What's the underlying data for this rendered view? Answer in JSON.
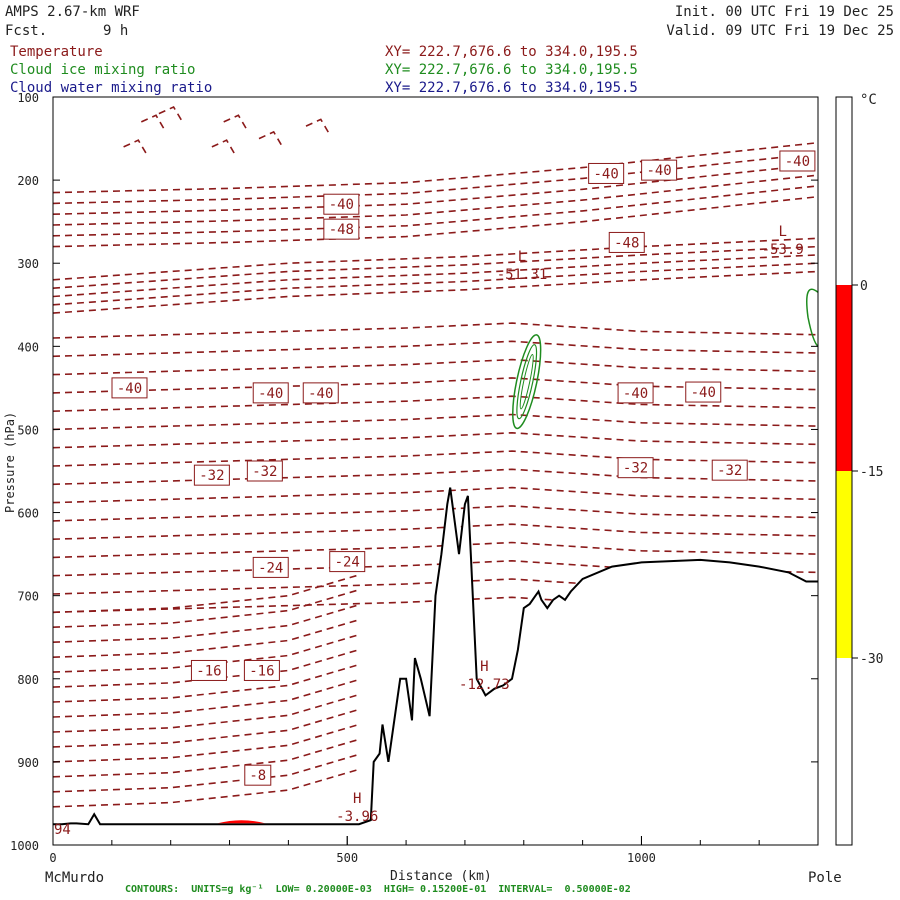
{
  "header": {
    "model": "AMPS 2.67-km WRF",
    "fcst_label": "Fcst.",
    "fcst_value": "9 h",
    "init": "Init. 00 UTC Fri 19 Dec 25",
    "valid": "Valid. 09 UTC Fri 19 Dec 25"
  },
  "fields": [
    {
      "name": "Temperature",
      "xy": "XY= 222.7,676.6 to 334.0,195.5",
      "color": "#8b1a1a"
    },
    {
      "name": "Cloud ice mixing ratio",
      "xy": "XY= 222.7,676.6 to 334.0,195.5",
      "color": "#1f8c1f"
    },
    {
      "name": "Cloud water mixing ratio",
      "xy": "XY= 222.7,676.6 to 334.0,195.5",
      "color": "#1a1a8b"
    }
  ],
  "footer": {
    "contours": "CONTOURS:  UNITS=g kg⁻¹  LOW= 0.20000E-03  HIGH= 0.15200E-01  INTERVAL=  0.50000E-02"
  },
  "colorbar": {
    "unit": "°C",
    "ticks": [
      "0",
      "-15",
      "-30"
    ],
    "colors": [
      "#ff0000",
      "#ffff00"
    ]
  },
  "chart_data": {
    "type": "contour",
    "title": "Temperature",
    "xlabel": "Distance (km)",
    "ylabel": "Pressure (hPa)",
    "xlim": [
      0,
      1300
    ],
    "ylim": [
      1000,
      100
    ],
    "xticks": [
      0,
      500,
      1000
    ],
    "yticks": [
      100,
      200,
      300,
      400,
      500,
      600,
      700,
      800,
      900,
      1000
    ],
    "x_endpoint_labels": [
      "McMurdo",
      "Pole"
    ],
    "contour_labels": [
      {
        "text": "-40",
        "x": 490,
        "p": 229
      },
      {
        "text": "-40",
        "x": 940,
        "p": 192
      },
      {
        "text": "-40",
        "x": 1030,
        "p": 188
      },
      {
        "text": "-40",
        "x": 1265,
        "p": 177
      },
      {
        "text": "-48",
        "x": 975,
        "p": 275
      },
      {
        "text": "-48",
        "x": 490,
        "p": 259
      },
      {
        "text": "-40",
        "x": 130,
        "p": 450
      },
      {
        "text": "-40",
        "x": 370,
        "p": 456
      },
      {
        "text": "-40",
        "x": 455,
        "p": 456
      },
      {
        "text": "-40",
        "x": 990,
        "p": 456
      },
      {
        "text": "-40",
        "x": 1105,
        "p": 455
      },
      {
        "text": "-32",
        "x": 270,
        "p": 555
      },
      {
        "text": "-32",
        "x": 360,
        "p": 550
      },
      {
        "text": "-32",
        "x": 990,
        "p": 546
      },
      {
        "text": "-32",
        "x": 1150,
        "p": 549
      },
      {
        "text": "-24",
        "x": 370,
        "p": 666
      },
      {
        "text": "-24",
        "x": 500,
        "p": 659
      },
      {
        "text": "-16",
        "x": 265,
        "p": 790
      },
      {
        "text": "-16",
        "x": 355,
        "p": 790
      },
      {
        "text": "-8",
        "x": 348,
        "p": 916
      }
    ],
    "extrema": [
      {
        "type": "L",
        "value": "-51.31",
        "x": 797,
        "p": 319
      },
      {
        "type": "L",
        "value": "-53.9",
        "x": 1240,
        "p": 289
      },
      {
        "type": "H",
        "value": "-12.73",
        "x": 733,
        "p": 812
      },
      {
        "type": "H",
        "value": "-3.96",
        "x": 517,
        "p": 971
      },
      {
        "type": "value",
        "value": "94",
        "x": 0,
        "p": 987
      }
    ],
    "terrain_profile": {
      "x": [
        0,
        15,
        30,
        40,
        60,
        70,
        80,
        95,
        110,
        200,
        300,
        400,
        520,
        540,
        545,
        555,
        560,
        570,
        580,
        590,
        600,
        610,
        615,
        625,
        640,
        650,
        660,
        670,
        675,
        690,
        700,
        705,
        710,
        720,
        735,
        750,
        765,
        780,
        790,
        800,
        810,
        820,
        825,
        830,
        840,
        850,
        860,
        870,
        880,
        900,
        950,
        1000,
        1100,
        1150,
        1200,
        1250,
        1280,
        1300
      ],
      "p": [
        975,
        975,
        974,
        974,
        975,
        963,
        975,
        975,
        975,
        975,
        975,
        975,
        975,
        970,
        900,
        890,
        855,
        900,
        850,
        800,
        800,
        850,
        775,
        800,
        845,
        700,
        650,
        590,
        570,
        650,
        590,
        580,
        650,
        800,
        820,
        812,
        808,
        800,
        765,
        715,
        710,
        700,
        695,
        705,
        715,
        705,
        700,
        705,
        695,
        680,
        665,
        660,
        657,
        660,
        665,
        672,
        683,
        683
      ]
    },
    "cloud_ice_contour": {
      "x": 805,
      "p_top": 385,
      "p_bottom": 500
    },
    "warm_area": {
      "x_from": 280,
      "x_to": 360,
      "p": 975,
      "max_temp_c": 0
    }
  }
}
